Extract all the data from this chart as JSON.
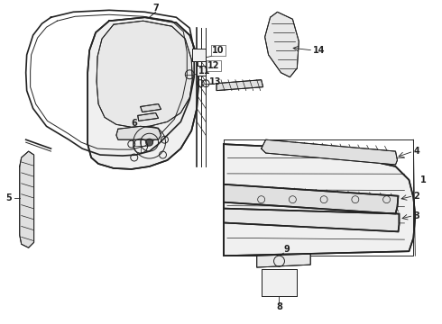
{
  "bg_color": "#ffffff",
  "line_color": "#222222",
  "lw_main": 1.2,
  "lw_thin": 0.7,
  "lw_detail": 0.5,
  "label_fs": 7,
  "label_fw": "bold"
}
